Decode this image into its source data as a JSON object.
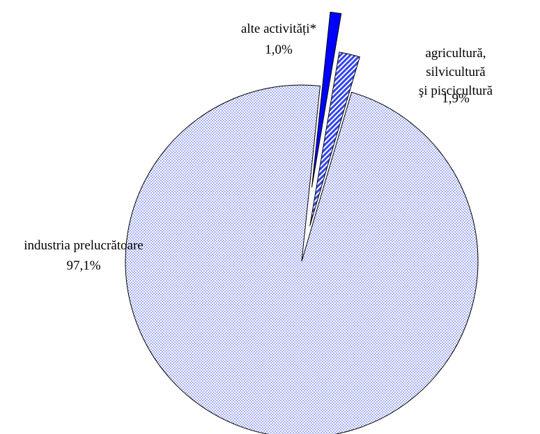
{
  "chart_data": {
    "type": "pie",
    "categories": [
      "alte activități*",
      "agricultură, silvicultură\nşi piscicultură",
      "industria prelucrătoare"
    ],
    "values": [
      1.0,
      1.9,
      97.1
    ],
    "value_labels": [
      "1,0%",
      "1,9%",
      "97,1%"
    ],
    "colors": [
      "#0000ff",
      "#3344ee",
      "#6677ee"
    ],
    "patterns": [
      "solid",
      "stripes",
      "dots"
    ]
  }
}
